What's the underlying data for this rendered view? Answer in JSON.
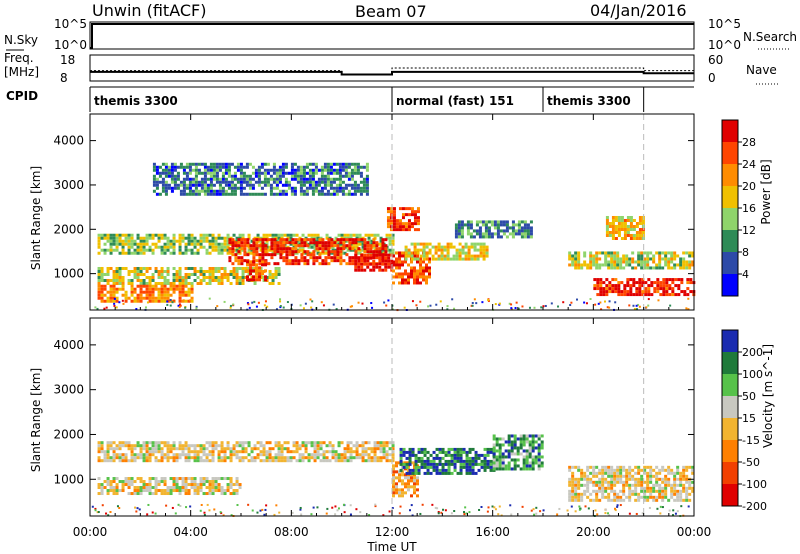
{
  "header": {
    "radar": "Unwin (fitACF)",
    "beam": "Beam 07",
    "date": "04/Jan/2016"
  },
  "nsky_panel": {
    "left_label": "N.Sky",
    "right_label": "N.Search",
    "left_ticks": [
      "10^5",
      "10^0"
    ],
    "right_ticks": [
      "10^5",
      "10^0"
    ]
  },
  "freq_panel": {
    "left_label_1": "Freq.",
    "left_label_2": "[MHz]",
    "right_label": "Nave",
    "left_ticks": [
      "18",
      "8"
    ],
    "right_ticks": [
      "60",
      "0"
    ],
    "freq_mhz": [
      {
        "t0": 0.0,
        "t1": 10.0,
        "v": 11.5
      },
      {
        "t0": 10.0,
        "t1": 12.0,
        "v": 10.5
      },
      {
        "t0": 12.0,
        "t1": 22.0,
        "v": 11.5
      },
      {
        "t0": 22.0,
        "t1": 24.0,
        "v": 11.0
      }
    ],
    "nave": [
      {
        "t0": 0.0,
        "t1": 10.0,
        "v": 24
      },
      {
        "t0": 10.0,
        "t1": 12.0,
        "v": 14
      },
      {
        "t0": 12.0,
        "t1": 22.0,
        "v": 30
      },
      {
        "t0": 22.0,
        "t1": 24.0,
        "v": 24
      }
    ]
  },
  "cpid_panel": {
    "label": "CPID",
    "modes": [
      {
        "t0": 0.0,
        "t1": 12.0,
        "name": "themis 3300"
      },
      {
        "t0": 12.0,
        "t1": 18.0,
        "name": "normal (fast) 151"
      },
      {
        "t0": 18.0,
        "t1": 22.0,
        "name": "themis 3300"
      }
    ]
  },
  "time_axis": {
    "label": "Time UT",
    "ticks": [
      "00:00",
      "04:00",
      "08:00",
      "12:00",
      "16:00",
      "20:00",
      "00:00"
    ]
  },
  "power_panel": {
    "ylabel": "Slant Range [km]",
    "yticks": [
      "1000",
      "2000",
      "3000",
      "4000"
    ],
    "colorbar_label": "Power [dB]",
    "colorbar_ticks": [
      "4",
      "8",
      "12",
      "16",
      "20",
      "24",
      "28"
    ],
    "colors": [
      "#0000ff",
      "#2d4aa8",
      "#2e8b57",
      "#8fd46b",
      "#f0c000",
      "#ff8c00",
      "#ff4500",
      "#e00000"
    ]
  },
  "velocity_panel": {
    "ylabel": "Slant Range [km]",
    "yticks": [
      "1000",
      "2000",
      "3000",
      "4000"
    ],
    "colorbar_label": "Velocity [m s^-1]",
    "colorbar_ticks": [
      "200",
      "100",
      "50",
      "15",
      "-15",
      "-50",
      "-100",
      "-200"
    ],
    "colors": [
      "#1a2bb0",
      "#1f7a3a",
      "#57c24a",
      "#c8c8c0",
      "#f2b430",
      "#ff8000",
      "#f24000",
      "#e00000"
    ]
  },
  "chart_data": {
    "type": "heatmap",
    "x_range_hours": [
      0,
      24
    ],
    "y_range_km": [
      180,
      4600
    ],
    "series": [
      {
        "name": "Power",
        "blobs": [
          {
            "t0": 0.3,
            "t1": 12.0,
            "r0": 1450,
            "r1": 1900,
            "level": 0.45
          },
          {
            "t0": 5.5,
            "t1": 11.8,
            "r0": 1250,
            "r1": 1800,
            "level": 0.88
          },
          {
            "t0": 0.3,
            "t1": 7.5,
            "r0": 750,
            "r1": 1150,
            "level": 0.5
          },
          {
            "t0": 0.3,
            "t1": 4.0,
            "r0": 400,
            "r1": 750,
            "level": 0.7
          },
          {
            "t0": 6.2,
            "t1": 7.0,
            "r0": 850,
            "r1": 1300,
            "level": 0.8
          },
          {
            "t0": 10.5,
            "t1": 12.0,
            "r0": 1050,
            "r1": 1450,
            "level": 0.95
          },
          {
            "t0": 11.8,
            "t1": 13.0,
            "r0": 2000,
            "r1": 2500,
            "level": 0.85
          },
          {
            "t0": 12.0,
            "t1": 13.5,
            "r0": 800,
            "r1": 1500,
            "level": 0.8
          },
          {
            "t0": 12.5,
            "t1": 15.8,
            "r0": 1300,
            "r1": 1700,
            "level": 0.55
          },
          {
            "t0": 14.5,
            "t1": 17.5,
            "r0": 1800,
            "r1": 2200,
            "level": 0.3
          },
          {
            "t0": 19.0,
            "t1": 24.0,
            "r0": 1100,
            "r1": 1500,
            "level": 0.5
          },
          {
            "t0": 20.0,
            "t1": 24.0,
            "r0": 500,
            "r1": 900,
            "level": 0.9
          },
          {
            "t0": 20.5,
            "t1": 22.0,
            "r0": 1800,
            "r1": 2300,
            "level": 0.6
          },
          {
            "t0": 2.5,
            "t1": 11.0,
            "r0": 2800,
            "r1": 3500,
            "level": 0.25
          }
        ]
      },
      {
        "name": "Velocity",
        "blobs": [
          {
            "t0": 0.3,
            "t1": 12.0,
            "r0": 1400,
            "r1": 1850,
            "level": 0.5
          },
          {
            "t0": 0.3,
            "t1": 6.0,
            "r0": 650,
            "r1": 1050,
            "level": 0.5
          },
          {
            "t0": 12.0,
            "t1": 13.0,
            "r0": 600,
            "r1": 1400,
            "level": 0.62
          },
          {
            "t0": 12.3,
            "t1": 16.0,
            "r0": 1100,
            "r1": 1700,
            "level": 0.15
          },
          {
            "t0": 16.0,
            "t1": 18.0,
            "r0": 1200,
            "r1": 2000,
            "level": 0.25
          },
          {
            "t0": 19.0,
            "t1": 24.0,
            "r0": 500,
            "r1": 1300,
            "level": 0.5
          }
        ]
      }
    ]
  }
}
